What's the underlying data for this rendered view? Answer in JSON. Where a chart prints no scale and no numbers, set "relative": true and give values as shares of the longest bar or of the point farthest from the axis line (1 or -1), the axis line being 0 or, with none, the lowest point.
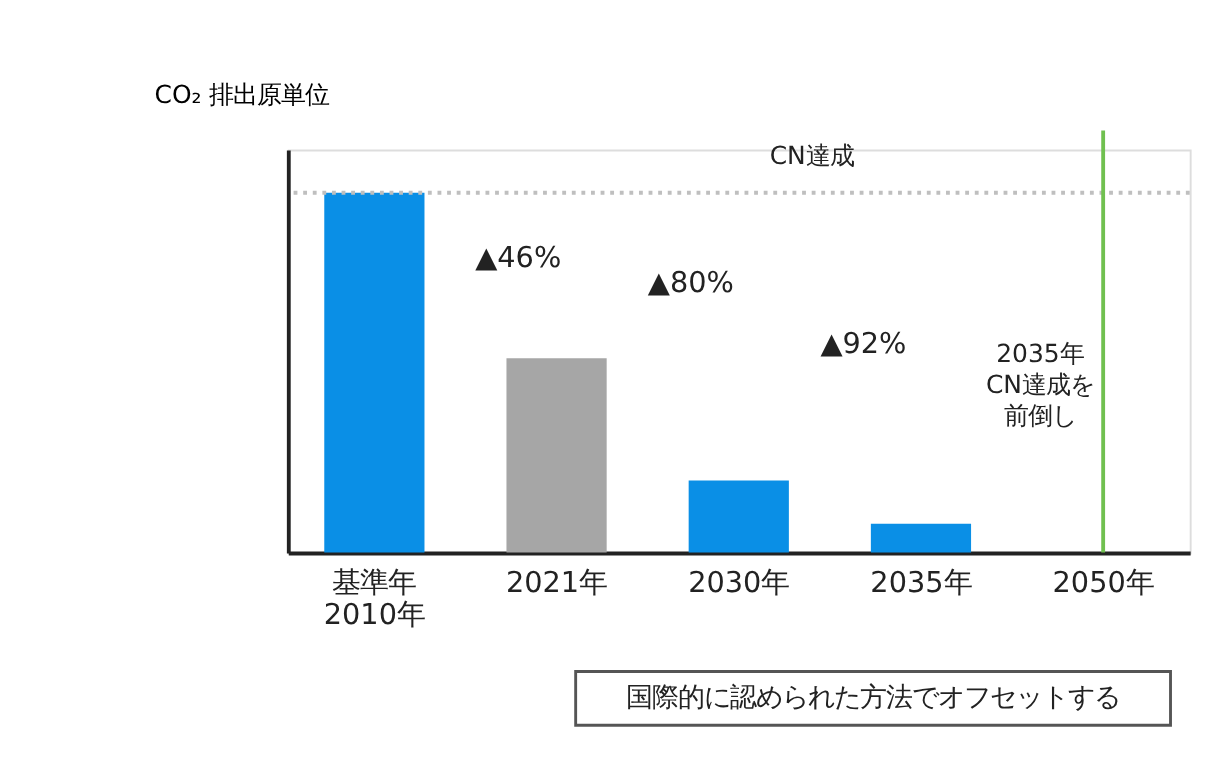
{
  "chart_data": {
    "type": "bar",
    "relative": true,
    "ylabel": "CO₂ 排出原単位",
    "categories": [
      "基準年\n2010年",
      "2021年",
      "2030年",
      "2035年",
      "2050年"
    ],
    "values": [
      1,
      0.54,
      0.2,
      0.08,
      null
    ],
    "colors": [
      "#0a8fe6",
      "#a6a6a6",
      "#0a8fe6",
      "#0a8fe6",
      "#0a8fe6"
    ],
    "ref_lines": [
      {
        "axis": "y",
        "value": 1,
        "color": "#bfbfbf",
        "line_style": "dotted"
      },
      {
        "axis": "x",
        "value": "2050年",
        "color": "#70c050",
        "line_style": "solid"
      }
    ],
    "annotations": [
      "CN達成",
      "▲46%",
      "▲80%",
      "▲92%",
      "2035年CN達成を前倒し",
      "国際的に認められた方法でオフセットする"
    ],
    "grid": false
  }
}
